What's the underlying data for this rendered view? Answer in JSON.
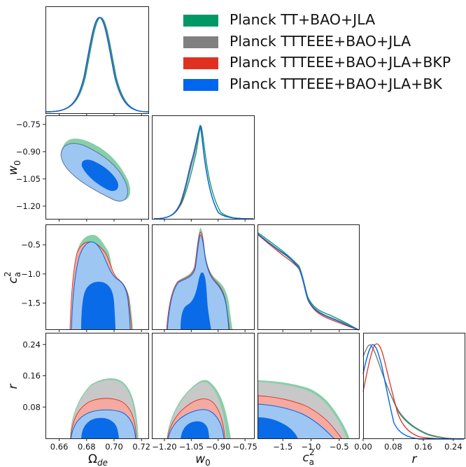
{
  "chart_data": {
    "type": "triangle-corner",
    "parameters": [
      {
        "id": "omega_de",
        "label": "Ω",
        "label_sub": "de",
        "ticks": [
          0.66,
          0.68,
          0.7,
          0.72
        ],
        "tick_labels": [
          "0.66",
          "0.68",
          "0.70",
          "0.72"
        ],
        "range": [
          0.65,
          0.725
        ]
      },
      {
        "id": "w0",
        "label": "w",
        "label_sub": "0",
        "ticks": [
          -1.2,
          -1.05,
          -0.9,
          -0.75
        ],
        "tick_labels": [
          "−1.20",
          "−1.05",
          "−0.90",
          "−0.75"
        ],
        "range": [
          -1.27,
          -0.7
        ]
      },
      {
        "id": "ca2",
        "label": "c",
        "label_sub": "a",
        "label_sup": "2",
        "ticks": [
          -1.5,
          -1.0,
          -0.5
        ],
        "tick_labels": [
          "−1.5",
          "−1.0",
          "−0.5"
        ],
        "range": [
          -1.95,
          -0.15
        ]
      },
      {
        "id": "r",
        "label": "r",
        "ticks": [
          0.08,
          0.16,
          0.24
        ],
        "tick_labels": [
          "0.08",
          "0.16",
          "0.24"
        ],
        "range": [
          0.0,
          0.27
        ]
      }
    ],
    "extra_ticks": {
      "r_x": {
        "ticks": [
          0.0,
          0.08,
          0.16,
          0.24
        ],
        "tick_labels": [
          "0.00",
          "0.08",
          "0.16",
          "0.24"
        ]
      }
    },
    "series": [
      {
        "name": "Planck TT+BAO+JLA",
        "color": "#009966",
        "fill2": "#86cfa8",
        "fill1": "#2e9e70"
      },
      {
        "name": "Planck TTTEEE+BAO+JLA",
        "color": "#808080",
        "fill2": "#c8c8c8",
        "fill1": "#8a8a8a"
      },
      {
        "name": "Planck TTTEEE+BAO+JLA+BKP",
        "color": "#e03020",
        "fill2": "#f4aaa0",
        "fill1": "#e65040"
      },
      {
        "name": "Planck TTTEEE+BAO+JLA+BK",
        "color": "#0066ee",
        "fill2": "#9ec6f2",
        "fill1": "#0a6be8"
      }
    ],
    "marginal_peaks": {
      "omega_de": 0.693,
      "w0": -0.99,
      "ca2": -0.15,
      "r": {
        "Planck TT+BAO+JLA": 0.012,
        "Planck TTTEEE+BAO+JLA": 0.012,
        "Planck TTTEEE+BAO+JLA+BKP": 0.035,
        "Planck TTTEEE+BAO+JLA+BK": 0.025
      }
    },
    "contours_95_r_upper": {
      "Planck TT+BAO+JLA": 0.153,
      "Planck TTTEEE+BAO+JLA": 0.15,
      "Planck TTTEEE+BAO+JLA+BKP": 0.12,
      "Planck TTTEEE+BAO+JLA+BK": 0.095
    },
    "legend_position": "top-right",
    "grid": false
  }
}
